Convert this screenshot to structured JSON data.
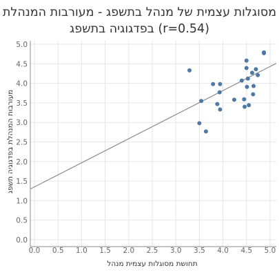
{
  "title_line1": "מסוגלות עצמית של מנהל בתשפג - מעורבות המנהלת",
  "title_line2": "בפדגוגיה בתשפג (r=0.54)",
  "colors": {
    "point": "#4E79A7",
    "trend": "#8c8c8c",
    "grid": "#e6e6e6",
    "axis": "#888888"
  },
  "chart_data": {
    "type": "scatter",
    "title": "מסוגלות עצמית של מנהל בתשפג - מעורבות המנהלת בפדגוגיה בתשפג (r=0.54)",
    "xlabel": "תחושת מסוגלות עצמית מנהל",
    "ylabel": "מעורבות המנהלת בפדגוגיה תשפג",
    "xlim": [
      0,
      5
    ],
    "ylim": [
      0,
      5
    ],
    "xticks": [
      "0.0",
      "0.5",
      "1.0",
      "1.5",
      "2.0",
      "2.5",
      "3.0",
      "3.5",
      "4.0",
      "4.5",
      "5.0"
    ],
    "yticks": [
      "0.0",
      "0.5",
      "1.0",
      "1.5",
      "2.0",
      "2.5",
      "3.0",
      "3.5",
      "4.0",
      "4.5",
      "5.0"
    ],
    "grid": true,
    "r": 0.54,
    "trendline": {
      "x": [
        0,
        5
      ],
      "y": [
        1.35,
        4.43
      ]
    },
    "points": [
      {
        "x": 3.29,
        "y": 4.33
      },
      {
        "x": 3.5,
        "y": 2.98
      },
      {
        "x": 3.54,
        "y": 3.55
      },
      {
        "x": 3.64,
        "y": 2.77
      },
      {
        "x": 3.79,
        "y": 3.98
      },
      {
        "x": 3.88,
        "y": 3.47
      },
      {
        "x": 3.93,
        "y": 3.77
      },
      {
        "x": 3.94,
        "y": 3.98
      },
      {
        "x": 3.94,
        "y": 3.33
      },
      {
        "x": 4.24,
        "y": 3.58
      },
      {
        "x": 4.4,
        "y": 4.07
      },
      {
        "x": 4.45,
        "y": 3.59
      },
      {
        "x": 4.46,
        "y": 3.4
      },
      {
        "x": 4.5,
        "y": 4.58
      },
      {
        "x": 4.5,
        "y": 4.39
      },
      {
        "x": 4.51,
        "y": 3.91
      },
      {
        "x": 4.53,
        "y": 4.12
      },
      {
        "x": 4.55,
        "y": 3.44
      },
      {
        "x": 4.62,
        "y": 4.27
      },
      {
        "x": 4.64,
        "y": 3.72
      },
      {
        "x": 4.65,
        "y": 3.93
      },
      {
        "x": 4.7,
        "y": 4.36
      },
      {
        "x": 4.74,
        "y": 4.21
      },
      {
        "x": 4.87,
        "y": 4.79
      },
      {
        "x": 4.87,
        "y": 4.77
      }
    ]
  }
}
